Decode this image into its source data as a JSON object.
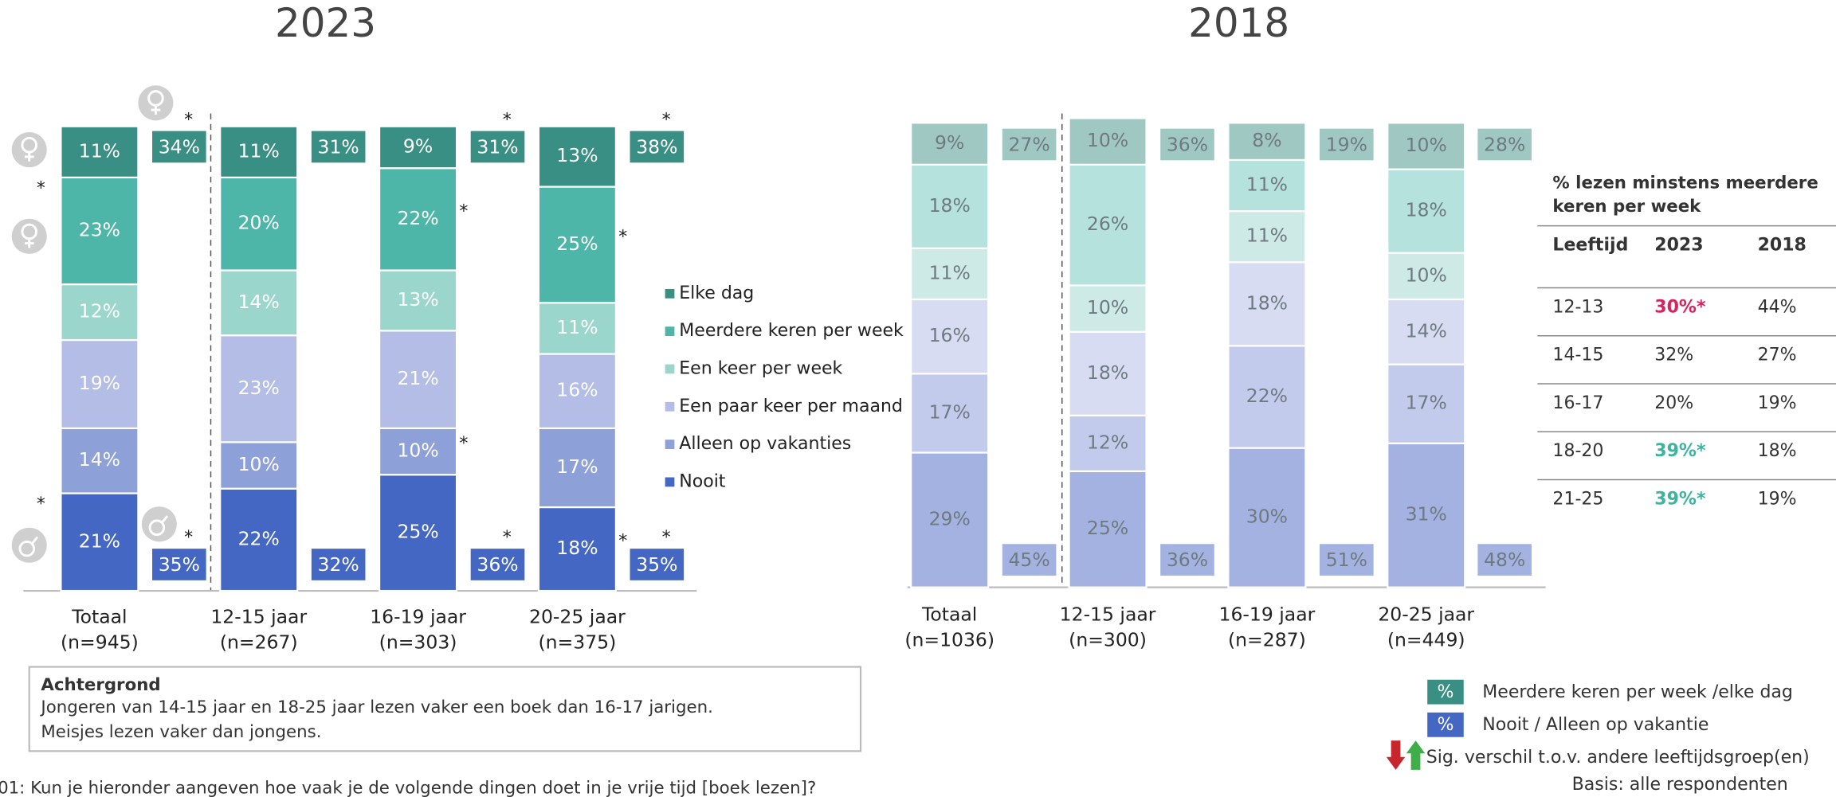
{
  "chart_data": [
    {
      "type": "stacked_bar",
      "title": "2023",
      "ylim": [
        0,
        100
      ],
      "categories": [
        "Totaal",
        "12-15 jaar",
        "16-19 jaar",
        "20-25 jaar"
      ],
      "n_labels": [
        "(n=945)",
        "(n=267)",
        "(n=303)",
        "(n=375)"
      ],
      "label_color": "#ffffff",
      "series": [
        {
          "name": "Elke dag",
          "color": "#3a8f84",
          "values": [
            11,
            11,
            9,
            13
          ],
          "value_labels": [
            "11%",
            "11%",
            "9%",
            "13%"
          ],
          "sig": [
            null,
            null,
            null,
            null
          ]
        },
        {
          "name": "Meerdere keren per week",
          "color": "#4db6a8",
          "values": [
            23,
            20,
            22,
            25
          ],
          "value_labels": [
            "23%",
            "20%",
            "22%",
            "25%"
          ],
          "sig": [
            "*",
            null,
            "*",
            "*"
          ]
        },
        {
          "name": "Een keer per week",
          "color": "#9bd6cd",
          "values": [
            12,
            14,
            13,
            11
          ],
          "value_labels": [
            "12%",
            "14%",
            "13%",
            "11%"
          ],
          "sig": [
            null,
            null,
            null,
            null
          ]
        },
        {
          "name": "Een paar keer per maand",
          "color": "#b3bde6",
          "values": [
            19,
            23,
            21,
            16
          ],
          "value_labels": [
            "19%",
            "23%",
            "21%",
            "16%"
          ],
          "sig": [
            null,
            null,
            null,
            null
          ]
        },
        {
          "name": "Alleen op vakanties",
          "color": "#8ea0d8",
          "values": [
            14,
            10,
            10,
            17
          ],
          "value_labels": [
            "14%",
            "10%",
            "10%",
            "17%"
          ],
          "sig": [
            null,
            null,
            "*",
            null
          ]
        },
        {
          "name": "Nooit",
          "color": "#4467c4",
          "values": [
            21,
            22,
            25,
            18
          ],
          "value_labels": [
            "21%",
            "22%",
            "25%",
            "18%"
          ],
          "sig": [
            "*",
            null,
            null,
            "*"
          ]
        }
      ],
      "summary_top": {
        "color": "#3a8f84",
        "values": [
          34,
          31,
          31,
          38
        ],
        "value_labels": [
          "34%",
          "31%",
          "31%",
          "38%"
        ],
        "sig": [
          "*",
          null,
          "*",
          "*"
        ]
      },
      "summary_bottom": {
        "color": "#4467c4",
        "values": [
          35,
          32,
          36,
          35
        ],
        "value_labels": [
          "35%",
          "32%",
          "36%",
          "35%"
        ],
        "sig": [
          "*",
          null,
          "*",
          "*"
        ]
      }
    },
    {
      "type": "stacked_bar",
      "title": "2018",
      "ylim": [
        0,
        100
      ],
      "categories": [
        "Totaal",
        "12-15 jaar",
        "16-19 jaar",
        "20-25 jaar"
      ],
      "n_labels": [
        "(n=1036)",
        "(n=300)",
        "(n=287)",
        "(n=449)"
      ],
      "label_color": "#6f7a80",
      "series": [
        {
          "color": "#a0c8c3",
          "values": [
            9,
            10,
            8,
            10
          ],
          "value_labels": [
            "9%",
            "10%",
            "8%",
            "10%"
          ]
        },
        {
          "color": "#b5e2dc",
          "values": [
            18,
            26,
            11,
            18
          ],
          "value_labels": [
            "18%",
            "26%",
            "11%",
            "18%"
          ]
        },
        {
          "color": "#cdeae6",
          "values": [
            11,
            10,
            11,
            10
          ],
          "value_labels": [
            "11%",
            "10%",
            "11%",
            "10%"
          ]
        },
        {
          "color": "#d7dcf2",
          "values": [
            16,
            18,
            18,
            14
          ],
          "value_labels": [
            "16%",
            "18%",
            "18%",
            "14%"
          ]
        },
        {
          "color": "#c3cbec",
          "values": [
            17,
            12,
            22,
            17
          ],
          "value_labels": [
            "17%",
            "12%",
            "22%",
            "17%"
          ]
        },
        {
          "color": "#a3b2e0",
          "values": [
            29,
            25,
            30,
            31
          ],
          "value_labels": [
            "29%",
            "25%",
            "30%",
            "31%"
          ]
        }
      ],
      "summary_top": {
        "color": "#a0c8c3",
        "values": [
          27,
          36,
          19,
          28
        ],
        "value_labels": [
          "27%",
          "36%",
          "19%",
          "28%"
        ]
      },
      "summary_bottom": {
        "color": "#a3b2e0",
        "values": [
          45,
          36,
          51,
          48
        ],
        "value_labels": [
          "45%",
          "36%",
          "51%",
          "48%"
        ]
      }
    }
  ],
  "table": {
    "title": [
      "% lezen minstens meerdere",
      "keren per week"
    ],
    "header": [
      "Leeftijd",
      "2023",
      "2018"
    ],
    "rows": [
      [
        "12-13",
        "30%*",
        "44%"
      ],
      [
        "14-15",
        "32%",
        "27%"
      ],
      [
        "16-17",
        "20%",
        "19%"
      ],
      [
        "18-20",
        "39%*",
        "18%"
      ],
      [
        "21-25",
        "39%*",
        "19%"
      ]
    ],
    "cell_colors": [
      [
        null,
        "#d6245e",
        null
      ],
      [
        null,
        null,
        null
      ],
      [
        null,
        null,
        null
      ],
      [
        null,
        "#3db3a0",
        null
      ],
      [
        null,
        "#3db3a0",
        null
      ]
    ]
  },
  "background": {
    "title": "Achtergrond",
    "lines": [
      "Jongeren van 14-15 jaar en 18-25 jaar lezen vaker een boek dan 16-17 jarigen.",
      "Meisjes lezen vaker dan jongens."
    ]
  },
  "summary_legend": {
    "symbol": "%",
    "items": [
      {
        "name": "Meerdere keren per week /elke dag",
        "color": "#3a8f84"
      },
      {
        "name": "Nooit / Alleen op vakantie",
        "color": "#4467c4"
      }
    ],
    "sig_note": "Sig. verschil t.o.v. andere leeftijdsgroep(en)",
    "basis": "Basis: alle respondenten"
  },
  "footnote": "01: Kun je hieronder aangeven hoe vaak je de volgende dingen doet in je vrije tijd [boek lezen]?"
}
